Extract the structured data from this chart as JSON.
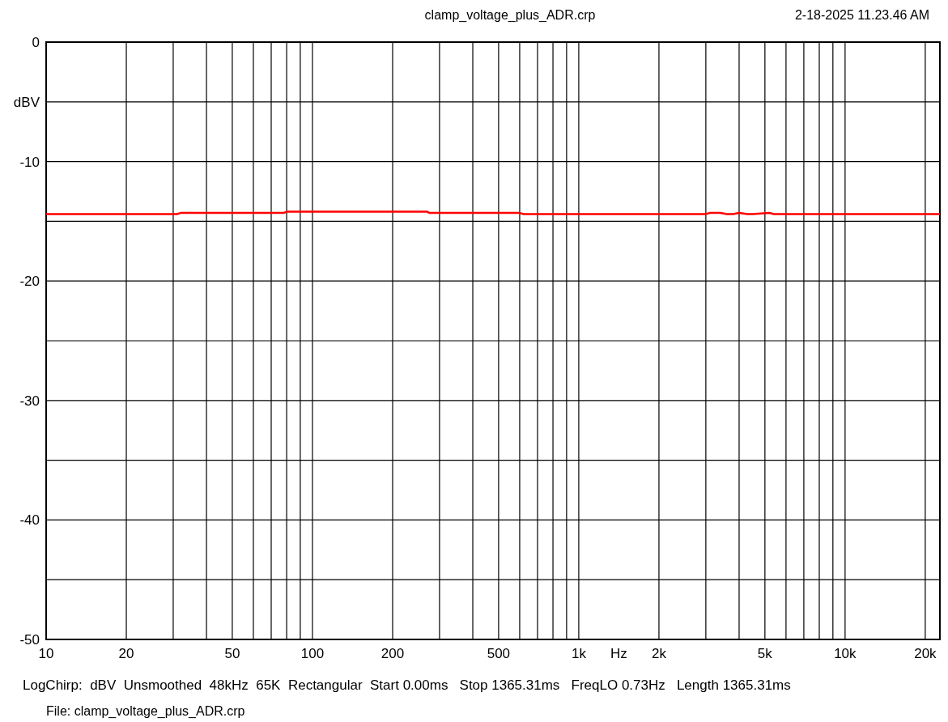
{
  "chart_data": {
    "type": "line",
    "title": "clamp_voltage_plus_ADR.crp",
    "ylabel": "dBV",
    "xlabel": "Hz",
    "log": "x",
    "grid": true,
    "annotations": [
      "2-18-2025 11.23.46 AM",
      "LogChirp:  dBV  Unsmoothed  48kHz  65K  Rectangular  Start 0.00ms   Stop 1365.31ms   FreqLO 0.73Hz   Length 1365.31ms",
      "File: clamp_voltage_plus_ADR.crp"
    ],
    "xlim": [
      10,
      22700
    ],
    "ylim": [
      -50,
      0
    ],
    "xticks": [
      10,
      20,
      {
        "value": 30,
        "label": null
      },
      {
        "value": 40,
        "label": null
      },
      50,
      {
        "value": 60,
        "label": null
      },
      {
        "value": 70,
        "label": null
      },
      {
        "value": 80,
        "label": null
      },
      {
        "value": 90,
        "label": null
      },
      100,
      200,
      {
        "value": 300,
        "label": null
      },
      {
        "value": 400,
        "label": null
      },
      500,
      {
        "value": 600,
        "label": null
      },
      {
        "value": 700,
        "label": null
      },
      {
        "value": 800,
        "label": null
      },
      {
        "value": 900,
        "label": null
      },
      {
        "value": 1000,
        "label": "1k"
      },
      {
        "value": 2000,
        "label": "2k"
      },
      {
        "value": 3000,
        "label": null
      },
      {
        "value": 4000,
        "label": null
      },
      {
        "value": 5000,
        "label": "5k"
      },
      {
        "value": 6000,
        "label": null
      },
      {
        "value": 7000,
        "label": null
      },
      {
        "value": 8000,
        "label": null
      },
      {
        "value": 9000,
        "label": null
      },
      {
        "value": 10000,
        "label": "10k"
      },
      {
        "value": 20000,
        "label": "20k"
      }
    ],
    "yticks": [
      0,
      {
        "value": -5,
        "label": null
      },
      -10,
      {
        "value": -15,
        "label": null
      },
      -20,
      {
        "value": -25,
        "label": null
      },
      -30,
      {
        "value": -35,
        "label": null
      },
      -40,
      {
        "value": -45,
        "label": null
      },
      -50
    ],
    "series": [
      {
        "color": "#ff0000",
        "x": [
          10,
          31,
          32,
          78,
          80,
          270,
          275,
          600,
          620,
          3000,
          3100,
          3400,
          3600,
          3800,
          4000,
          4300,
          4500,
          5200,
          5400,
          22700
        ],
        "values": [
          -14.4,
          -14.4,
          -14.3,
          -14.3,
          -14.2,
          -14.2,
          -14.3,
          -14.3,
          -14.4,
          -14.4,
          -14.3,
          -14.3,
          -14.4,
          -14.4,
          -14.3,
          -14.4,
          -14.4,
          -14.3,
          -14.4,
          -14.4
        ]
      }
    ]
  }
}
